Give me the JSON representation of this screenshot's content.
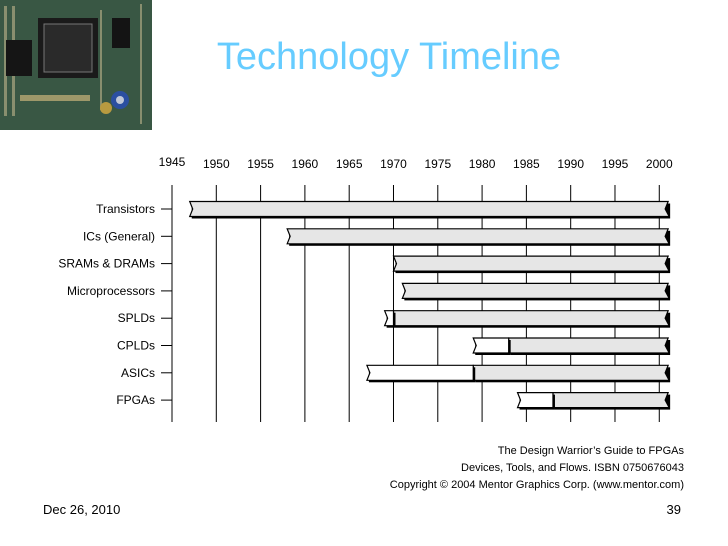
{
  "slide": {
    "title": "Technology Timeline",
    "footer_date": "Dec 26, 2010",
    "page_number": "39"
  },
  "credits": [
    "The Design Warrior’s Guide to FPGAs",
    "Devices, Tools, and Flows. ISBN 0750676043",
    "Copyright © 2004 Mentor Graphics Corp. (www.mentor.com)"
  ],
  "chart_data": {
    "type": "bar",
    "orientation": "horizontal",
    "x_ticks": [
      1945,
      1950,
      1955,
      1960,
      1965,
      1970,
      1975,
      1980,
      1985,
      1990,
      1995,
      2000
    ],
    "xlim": [
      1945,
      2002
    ],
    "grid": true,
    "categories": [
      "Transistors",
      "ICs (General)",
      "SRAMs & DRAMs",
      "Microprocessors",
      "SPLDs",
      "CPLDs",
      "ASICs",
      "FPGAs"
    ],
    "series": [
      {
        "values": [
          {
            "start": 1947,
            "end": 2001
          },
          {
            "start": 1958,
            "end": 2001
          },
          {
            "start": 1970,
            "end": 2001
          },
          {
            "start": 1971,
            "end": 2001
          },
          {
            "start": 1970,
            "end": 2001
          },
          {
            "start": 1983,
            "end": 2001
          },
          {
            "start": 1979,
            "end": 2001
          },
          {
            "start": 1988,
            "end": 2001
          }
        ]
      },
      {
        "values": [
          null,
          null,
          null,
          null,
          {
            "start": 1969,
            "end": 1970
          },
          {
            "start": 1979,
            "end": 1983
          },
          {
            "start": 1967,
            "end": 1979
          },
          {
            "start": 1984,
            "end": 1988
          }
        ]
      }
    ],
    "colors": {
      "established": "#e6e6e6",
      "emerging": "#ffffff",
      "outline": "#000000",
      "grid": "#000000"
    }
  }
}
